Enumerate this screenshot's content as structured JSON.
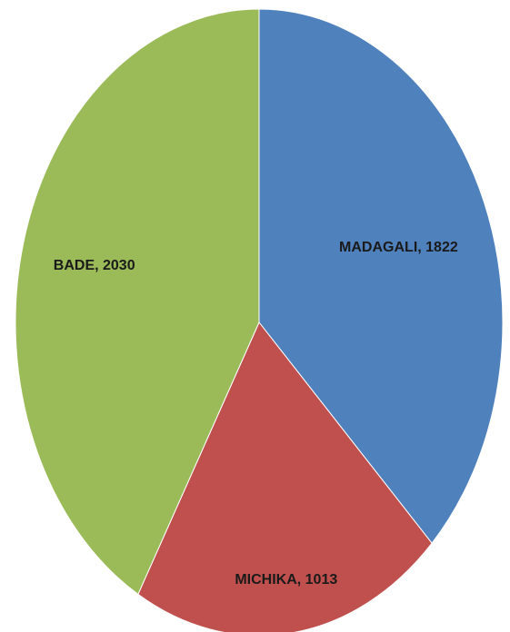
{
  "chart_data": {
    "type": "pie",
    "categories": [
      "MADAGALI",
      "MICHIKA",
      "BADE"
    ],
    "values": [
      1822,
      1013,
      2030
    ],
    "data_labels": [
      "MADAGALI, 1822",
      "MICHIKA, 1013",
      "BADE, 2030"
    ],
    "colors": [
      "#4F81BD",
      "#C0504D",
      "#9BBB59"
    ],
    "start_angle": "12 o'clock",
    "direction": "clockwise",
    "legend": "none"
  }
}
